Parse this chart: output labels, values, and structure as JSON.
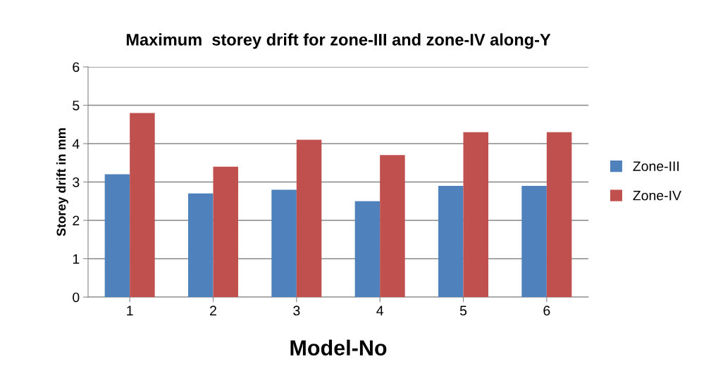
{
  "chart_data": {
    "type": "bar",
    "title": "Maximum  storey drift for zone-III and zone-IV along-Y",
    "xlabel": "Model-No",
    "ylabel": "Storey drift in mm",
    "categories": [
      "1",
      "2",
      "3",
      "4",
      "5",
      "6"
    ],
    "series": [
      {
        "name": "Zone-III",
        "color": "#4f81bd",
        "values": [
          3.2,
          2.7,
          2.8,
          2.5,
          2.9,
          2.9
        ]
      },
      {
        "name": "Zone-IV",
        "color": "#c0504d",
        "values": [
          4.8,
          3.4,
          4.1,
          3.7,
          4.3,
          4.3
        ]
      }
    ],
    "ylim": [
      0,
      6
    ],
    "yticks": [
      0,
      1,
      2,
      3,
      4,
      5,
      6
    ],
    "grid": "y",
    "legend": "right"
  }
}
